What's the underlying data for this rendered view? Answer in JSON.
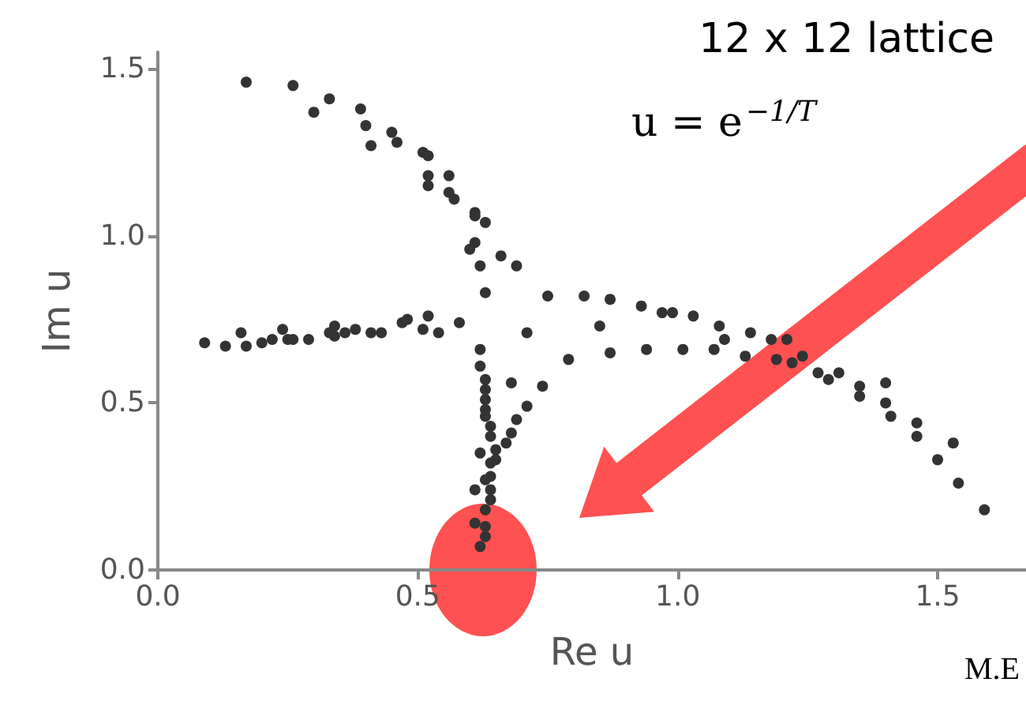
{
  "chart_data": {
    "type": "scatter",
    "xlabel": "Re u",
    "ylabel": "Im u",
    "annotations": [
      "12 x 12 lattice",
      "u = e$^{−1/T}$",
      "M.E"
    ],
    "x": [
      0.17,
      0.26,
      0.3,
      0.33,
      0.39,
      0.4,
      0.41,
      0.45,
      0.46,
      0.51,
      0.52,
      0.52,
      0.52,
      0.56,
      0.56,
      0.57,
      0.61,
      0.61,
      0.63,
      0.61,
      0.6,
      0.62,
      0.66,
      0.69,
      0.63,
      0.75,
      0.71,
      0.09,
      0.13,
      0.16,
      0.17,
      0.2,
      0.22,
      0.24,
      0.25,
      0.26,
      0.29,
      0.33,
      0.34,
      0.34,
      0.36,
      0.38,
      0.41,
      0.43,
      0.47,
      0.48,
      0.52,
      0.51,
      0.54,
      0.58,
      0.62,
      0.62,
      0.63,
      0.63,
      0.63,
      0.63,
      0.63,
      0.64,
      0.64,
      0.62,
      0.65,
      0.65,
      0.64,
      0.64,
      0.63,
      0.61,
      0.64,
      0.64,
      0.63,
      0.61,
      0.63,
      0.63,
      0.62,
      0.67,
      0.68,
      0.69,
      0.71,
      0.74,
      0.68,
      0.79,
      0.82,
      0.87,
      0.93,
      0.97,
      0.99,
      1.03,
      1.08,
      1.09,
      1.07,
      1.14,
      1.13,
      1.18,
      1.21,
      1.19,
      1.22,
      1.24,
      1.27,
      1.29,
      1.31,
      1.35,
      1.35,
      1.4,
      1.4,
      1.41,
      1.46,
      1.46,
      1.5,
      1.53,
      1.54,
      1.59,
      0.85,
      0.87,
      0.94,
      1.01
    ],
    "values": [
      1.46,
      1.45,
      1.37,
      1.41,
      1.38,
      1.33,
      1.27,
      1.31,
      1.28,
      1.25,
      1.24,
      1.18,
      1.15,
      1.18,
      1.13,
      1.11,
      1.07,
      1.06,
      1.04,
      0.98,
      0.96,
      0.91,
      0.94,
      0.91,
      0.83,
      0.82,
      0.71,
      0.68,
      0.67,
      0.71,
      0.67,
      0.68,
      0.69,
      0.72,
      0.69,
      0.69,
      0.69,
      0.71,
      0.73,
      0.7,
      0.71,
      0.72,
      0.71,
      0.71,
      0.74,
      0.75,
      0.76,
      0.72,
      0.71,
      0.74,
      0.66,
      0.61,
      0.57,
      0.54,
      0.51,
      0.48,
      0.46,
      0.43,
      0.4,
      0.35,
      0.36,
      0.33,
      0.32,
      0.28,
      0.27,
      0.24,
      0.24,
      0.21,
      0.18,
      0.14,
      0.13,
      0.1,
      0.07,
      0.38,
      0.41,
      0.45,
      0.49,
      0.55,
      0.56,
      0.63,
      0.82,
      0.81,
      0.79,
      0.77,
      0.77,
      0.76,
      0.73,
      0.69,
      0.66,
      0.71,
      0.64,
      0.69,
      0.69,
      0.63,
      0.62,
      0.64,
      0.59,
      0.57,
      0.59,
      0.55,
      0.52,
      0.56,
      0.5,
      0.46,
      0.44,
      0.4,
      0.33,
      0.38,
      0.26,
      0.18,
      0.73,
      0.65,
      0.66,
      0.66
    ],
    "color": "#333333",
    "marker": "circle",
    "xlim": [
      0,
      1.67
    ],
    "ylim": [
      0,
      1.55
    ],
    "xticks": [
      {
        "value": 0,
        "label": "0.0"
      },
      0.5,
      {
        "value": 1,
        "label": "1.0"
      },
      1.5
    ],
    "yticks": [
      {
        "value": 0,
        "label": "0.0"
      },
      0.5,
      {
        "value": 1,
        "label": "1.0"
      },
      1.5
    ],
    "grid": false
  }
}
